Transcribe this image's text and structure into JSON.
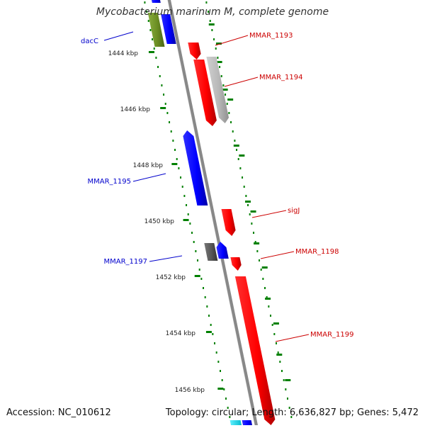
{
  "title": "Mycobacterium marinum M, complete genome",
  "footer": {
    "accession": "Accession: NC_010612",
    "topology": "Topology: circular; Length: 6,636,827 bp; Genes: 5,472"
  },
  "colors": {
    "forward_gene": "#ff0000",
    "reverse_gene": "#0000ff",
    "pseudo_gene": "#b8b8b8",
    "other_gene": "#6b8e23",
    "dark_gene": "#555555",
    "cyan_gene": "#00e5ff",
    "backbone": "#888888",
    "tick": "#008000",
    "forward_label": "#cc0000",
    "reverse_label": "#0000cc"
  },
  "tick_labels": [
    "1444 kbp",
    "1446 kbp",
    "1448 kbp",
    "1450 kbp",
    "1452 kbp",
    "1454 kbp",
    "1456 kbp"
  ],
  "gene_labels": [
    {
      "text": "dacC",
      "strand": "reverse"
    },
    {
      "text": "MMAR_1193",
      "strand": "forward"
    },
    {
      "text": "MMAR_1194",
      "strand": "forward"
    },
    {
      "text": "MMAR_1195",
      "strand": "reverse"
    },
    {
      "text": "sigJ",
      "strand": "forward"
    },
    {
      "text": "MMAR_1198",
      "strand": "forward"
    },
    {
      "text": "MMAR_1197",
      "strand": "reverse"
    },
    {
      "text": "MMAR_1199",
      "strand": "forward"
    }
  ]
}
